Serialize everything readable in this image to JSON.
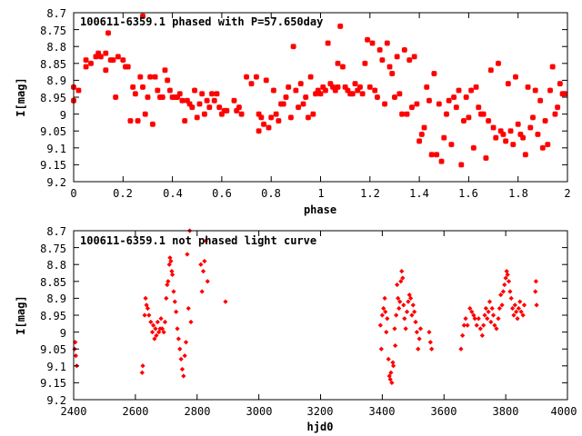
{
  "figure": {
    "background": "#ffffff",
    "marker_color": "#ff0000"
  },
  "chart_data": [
    {
      "type": "scatter",
      "title": "100611-6359.1 phased with P=57.650day",
      "xlabel": "phase",
      "ylabel": "I[mag]",
      "xlim": [
        0,
        2
      ],
      "ylim": [
        9.2,
        8.7
      ],
      "y_inverted": true,
      "grid": false,
      "legend": "none",
      "marker": "bold-cross",
      "color": "#ff0000",
      "x_ticks": [
        "0",
        "0.2",
        "0.4",
        "0.6",
        "0.8",
        "1",
        "1.2",
        "1.4",
        "1.6",
        "1.8",
        "2"
      ],
      "y_ticks": [
        "8.7",
        "8.75",
        "8.8",
        "8.85",
        "8.9",
        "8.95",
        "9",
        "9.05",
        "9.1",
        "9.15",
        "9.2"
      ],
      "points": [
        [
          0.0,
          8.92
        ],
        [
          0.0,
          8.96
        ],
        [
          0.02,
          8.93
        ],
        [
          0.05,
          8.86
        ],
        [
          0.05,
          8.84
        ],
        [
          0.07,
          8.85
        ],
        [
          0.09,
          8.83
        ],
        [
          0.1,
          8.82
        ],
        [
          0.11,
          8.83
        ],
        [
          0.13,
          8.82
        ],
        [
          0.13,
          8.87
        ],
        [
          0.14,
          8.76
        ],
        [
          0.15,
          8.84
        ],
        [
          0.16,
          8.84
        ],
        [
          0.17,
          8.95
        ],
        [
          0.18,
          8.83
        ],
        [
          0.2,
          8.84
        ],
        [
          0.21,
          8.86
        ],
        [
          0.22,
          8.86
        ],
        [
          0.23,
          9.02
        ],
        [
          0.24,
          8.92
        ],
        [
          0.25,
          8.94
        ],
        [
          0.26,
          9.02
        ],
        [
          0.27,
          8.89
        ],
        [
          0.28,
          8.92
        ],
        [
          0.28,
          8.71
        ],
        [
          0.29,
          9.0
        ],
        [
          0.3,
          8.95
        ],
        [
          0.31,
          8.89
        ],
        [
          0.32,
          9.03
        ],
        [
          0.33,
          8.89
        ],
        [
          0.34,
          8.93
        ],
        [
          0.35,
          8.95
        ],
        [
          0.36,
          8.95
        ],
        [
          0.37,
          8.87
        ],
        [
          0.38,
          8.9
        ],
        [
          0.39,
          8.93
        ],
        [
          0.4,
          8.95
        ],
        [
          0.41,
          8.95
        ],
        [
          0.42,
          8.95
        ],
        [
          0.43,
          8.94
        ],
        [
          0.44,
          8.96
        ],
        [
          0.45,
          9.02
        ],
        [
          0.46,
          8.96
        ],
        [
          0.47,
          8.97
        ],
        [
          0.48,
          8.98
        ],
        [
          0.49,
          8.93
        ],
        [
          0.5,
          9.01
        ],
        [
          0.51,
          8.97
        ],
        [
          0.52,
          8.94
        ],
        [
          0.53,
          9.0
        ],
        [
          0.54,
          8.96
        ],
        [
          0.55,
          8.98
        ],
        [
          0.56,
          8.94
        ],
        [
          0.57,
          8.96
        ],
        [
          0.58,
          8.94
        ],
        [
          0.59,
          8.98
        ],
        [
          0.6,
          9.0
        ],
        [
          0.61,
          8.99
        ],
        [
          0.62,
          8.99
        ],
        [
          0.65,
          8.96
        ],
        [
          0.66,
          8.99
        ],
        [
          0.67,
          8.98
        ],
        [
          0.68,
          9.0
        ],
        [
          0.7,
          8.89
        ],
        [
          0.72,
          8.91
        ],
        [
          0.74,
          8.89
        ],
        [
          0.75,
          9.0
        ],
        [
          0.75,
          9.05
        ],
        [
          0.76,
          9.01
        ],
        [
          0.77,
          9.03
        ],
        [
          0.78,
          8.9
        ],
        [
          0.79,
          9.04
        ],
        [
          0.8,
          9.01
        ],
        [
          0.81,
          8.93
        ],
        [
          0.82,
          9.0
        ],
        [
          0.83,
          9.02
        ],
        [
          0.84,
          8.97
        ],
        [
          0.85,
          8.97
        ],
        [
          0.86,
          8.95
        ],
        [
          0.87,
          8.92
        ],
        [
          0.88,
          9.01
        ],
        [
          0.89,
          8.8
        ],
        [
          0.9,
          8.93
        ],
        [
          0.91,
          8.98
        ],
        [
          0.92,
          8.91
        ],
        [
          0.93,
          8.97
        ],
        [
          0.94,
          8.95
        ],
        [
          0.95,
          9.01
        ],
        [
          0.96,
          8.89
        ],
        [
          0.97,
          9.0
        ],
        [
          0.98,
          8.94
        ],
        [
          0.99,
          8.93
        ],
        [
          1.0,
          8.94
        ],
        [
          1.01,
          8.92
        ],
        [
          1.02,
          8.93
        ],
        [
          1.03,
          8.79
        ],
        [
          1.04,
          8.91
        ],
        [
          1.05,
          8.92
        ],
        [
          1.06,
          8.93
        ],
        [
          1.07,
          8.92
        ],
        [
          1.07,
          8.85
        ],
        [
          1.08,
          8.74
        ],
        [
          1.09,
          8.86
        ],
        [
          1.1,
          8.92
        ],
        [
          1.11,
          8.93
        ],
        [
          1.12,
          8.94
        ],
        [
          1.13,
          8.94
        ],
        [
          1.14,
          8.91
        ],
        [
          1.15,
          8.93
        ],
        [
          1.16,
          8.92
        ],
        [
          1.17,
          8.94
        ],
        [
          1.18,
          8.85
        ],
        [
          1.19,
          8.78
        ],
        [
          1.2,
          8.92
        ],
        [
          1.21,
          8.79
        ],
        [
          1.22,
          8.93
        ],
        [
          1.23,
          8.95
        ],
        [
          1.24,
          8.81
        ],
        [
          1.25,
          8.84
        ],
        [
          1.26,
          8.97
        ],
        [
          1.27,
          8.79
        ],
        [
          1.28,
          8.86
        ],
        [
          1.29,
          8.88
        ],
        [
          1.3,
          8.95
        ],
        [
          1.31,
          8.83
        ],
        [
          1.32,
          8.94
        ],
        [
          1.33,
          9.0
        ],
        [
          1.34,
          8.81
        ],
        [
          1.35,
          9.0
        ],
        [
          1.36,
          8.84
        ],
        [
          1.37,
          8.98
        ],
        [
          1.38,
          8.83
        ],
        [
          1.39,
          8.97
        ],
        [
          1.4,
          9.08
        ],
        [
          1.41,
          9.06
        ],
        [
          1.42,
          9.04
        ],
        [
          1.43,
          8.92
        ],
        [
          1.44,
          8.96
        ],
        [
          1.45,
          9.12
        ],
        [
          1.46,
          8.88
        ],
        [
          1.47,
          9.12
        ],
        [
          1.48,
          8.97
        ],
        [
          1.49,
          9.14
        ],
        [
          1.5,
          9.07
        ],
        [
          1.51,
          9.0
        ],
        [
          1.52,
          8.96
        ],
        [
          1.53,
          9.09
        ],
        [
          1.54,
          8.95
        ],
        [
          1.55,
          8.98
        ],
        [
          1.56,
          8.93
        ],
        [
          1.57,
          9.15
        ],
        [
          1.58,
          9.02
        ],
        [
          1.59,
          8.95
        ],
        [
          1.6,
          9.01
        ],
        [
          1.61,
          8.93
        ],
        [
          1.62,
          9.1
        ],
        [
          1.63,
          8.92
        ],
        [
          1.64,
          8.98
        ],
        [
          1.65,
          9.0
        ],
        [
          1.66,
          9.0
        ],
        [
          1.67,
          9.13
        ],
        [
          1.68,
          9.02
        ],
        [
          1.69,
          8.87
        ],
        [
          1.7,
          9.04
        ],
        [
          1.71,
          9.07
        ],
        [
          1.72,
          8.85
        ],
        [
          1.73,
          9.05
        ],
        [
          1.74,
          9.06
        ],
        [
          1.75,
          9.08
        ],
        [
          1.76,
          8.91
        ],
        [
          1.77,
          9.05
        ],
        [
          1.78,
          9.09
        ],
        [
          1.79,
          8.89
        ],
        [
          1.8,
          9.03
        ],
        [
          1.81,
          9.06
        ],
        [
          1.82,
          9.07
        ],
        [
          1.83,
          9.12
        ],
        [
          1.84,
          8.92
        ],
        [
          1.85,
          9.04
        ],
        [
          1.86,
          9.01
        ],
        [
          1.87,
          8.93
        ],
        [
          1.88,
          9.06
        ],
        [
          1.89,
          8.96
        ],
        [
          1.9,
          9.1
        ],
        [
          1.91,
          9.02
        ],
        [
          1.92,
          9.09
        ],
        [
          1.93,
          8.93
        ],
        [
          1.94,
          8.86
        ],
        [
          1.95,
          9.0
        ],
        [
          1.96,
          8.98
        ],
        [
          1.97,
          8.91
        ],
        [
          1.98,
          8.94
        ],
        [
          1.99,
          8.94
        ]
      ]
    },
    {
      "type": "scatter",
      "title": "100611-6359.1 not phased light curve",
      "xlabel": "hjd0",
      "ylabel": "I[mag]",
      "xlim": [
        2400,
        4000
      ],
      "ylim": [
        9.2,
        8.7
      ],
      "y_inverted": true,
      "grid": false,
      "legend": "none",
      "marker": "diamond",
      "color": "#ff0000",
      "x_ticks": [
        "2400",
        "2600",
        "2800",
        "3000",
        "3200",
        "3400",
        "3600",
        "3800",
        "4000"
      ],
      "y_ticks": [
        "8.7",
        "8.75",
        "8.8",
        "8.85",
        "8.9",
        "8.95",
        "9",
        "9.05",
        "9.1",
        "9.15",
        "9.2"
      ],
      "points": [
        [
          2403,
          9.05
        ],
        [
          2405,
          9.03
        ],
        [
          2407,
          9.07
        ],
        [
          2410,
          9.1
        ],
        [
          2622,
          9.12
        ],
        [
          2624,
          9.1
        ],
        [
          2630,
          8.95
        ],
        [
          2633,
          8.9
        ],
        [
          2636,
          8.92
        ],
        [
          2640,
          8.93
        ],
        [
          2644,
          8.95
        ],
        [
          2650,
          8.97
        ],
        [
          2655,
          9.0
        ],
        [
          2658,
          8.98
        ],
        [
          2662,
          9.02
        ],
        [
          2665,
          8.99
        ],
        [
          2668,
          9.01
        ],
        [
          2672,
          8.97
        ],
        [
          2676,
          9.0
        ],
        [
          2680,
          8.99
        ],
        [
          2683,
          8.96
        ],
        [
          2687,
          8.99
        ],
        [
          2692,
          9.0
        ],
        [
          2696,
          8.97
        ],
        [
          2700,
          8.9
        ],
        [
          2703,
          8.86
        ],
        [
          2706,
          8.85
        ],
        [
          2710,
          8.8
        ],
        [
          2712,
          8.78
        ],
        [
          2715,
          8.79
        ],
        [
          2718,
          8.82
        ],
        [
          2720,
          8.83
        ],
        [
          2724,
          8.88
        ],
        [
          2728,
          8.91
        ],
        [
          2732,
          8.94
        ],
        [
          2736,
          8.99
        ],
        [
          2740,
          9.02
        ],
        [
          2744,
          9.05
        ],
        [
          2748,
          9.08
        ],
        [
          2752,
          9.11
        ],
        [
          2756,
          9.13
        ],
        [
          2760,
          9.07
        ],
        [
          2764,
          9.03
        ],
        [
          2768,
          8.77
        ],
        [
          2772,
          8.93
        ],
        [
          2776,
          8.7
        ],
        [
          2780,
          8.97
        ],
        [
          2812,
          8.8
        ],
        [
          2816,
          8.88
        ],
        [
          2820,
          8.82
        ],
        [
          2824,
          8.79
        ],
        [
          2828,
          8.73
        ],
        [
          2834,
          8.85
        ],
        [
          2892,
          8.91
        ],
        [
          3394,
          8.98
        ],
        [
          3397,
          9.05
        ],
        [
          3400,
          8.95
        ],
        [
          3404,
          8.93
        ],
        [
          3408,
          8.9
        ],
        [
          3410,
          8.94
        ],
        [
          3413,
          9.0
        ],
        [
          3416,
          8.96
        ],
        [
          3420,
          9.08
        ],
        [
          3423,
          9.13
        ],
        [
          3426,
          9.14
        ],
        [
          3428,
          9.12
        ],
        [
          3431,
          9.15
        ],
        [
          3434,
          9.09
        ],
        [
          3436,
          9.1
        ],
        [
          3440,
          8.99
        ],
        [
          3442,
          9.04
        ],
        [
          3445,
          8.95
        ],
        [
          3448,
          8.86
        ],
        [
          3451,
          8.9
        ],
        [
          3454,
          8.93
        ],
        [
          3457,
          8.91
        ],
        [
          3460,
          8.85
        ],
        [
          3463,
          8.82
        ],
        [
          3466,
          8.84
        ],
        [
          3469,
          8.92
        ],
        [
          3472,
          8.96
        ],
        [
          3476,
          8.99
        ],
        [
          3480,
          8.94
        ],
        [
          3484,
          8.91
        ],
        [
          3488,
          8.89
        ],
        [
          3492,
          8.9
        ],
        [
          3496,
          8.95
        ],
        [
          3500,
          8.92
        ],
        [
          3504,
          8.94
        ],
        [
          3508,
          8.97
        ],
        [
          3512,
          9.0
        ],
        [
          3516,
          9.05
        ],
        [
          3520,
          9.02
        ],
        [
          3524,
          8.99
        ],
        [
          3552,
          9.0
        ],
        [
          3556,
          9.03
        ],
        [
          3560,
          9.05
        ],
        [
          3655,
          9.05
        ],
        [
          3660,
          9.01
        ],
        [
          3665,
          8.98
        ],
        [
          3670,
          8.96
        ],
        [
          3676,
          8.98
        ],
        [
          3684,
          8.93
        ],
        [
          3690,
          8.94
        ],
        [
          3696,
          8.95
        ],
        [
          3700,
          8.96
        ],
        [
          3706,
          8.98
        ],
        [
          3712,
          8.96
        ],
        [
          3718,
          8.99
        ],
        [
          3724,
          9.01
        ],
        [
          3728,
          8.98
        ],
        [
          3732,
          8.95
        ],
        [
          3736,
          8.93
        ],
        [
          3740,
          8.96
        ],
        [
          3744,
          8.94
        ],
        [
          3748,
          8.91
        ],
        [
          3752,
          8.97
        ],
        [
          3756,
          8.93
        ],
        [
          3760,
          8.95
        ],
        [
          3764,
          8.98
        ],
        [
          3770,
          8.99
        ],
        [
          3776,
          8.96
        ],
        [
          3780,
          8.93
        ],
        [
          3784,
          8.89
        ],
        [
          3788,
          8.92
        ],
        [
          3792,
          8.88
        ],
        [
          3796,
          8.86
        ],
        [
          3800,
          8.84
        ],
        [
          3803,
          8.82
        ],
        [
          3806,
          8.83
        ],
        [
          3810,
          8.85
        ],
        [
          3814,
          8.88
        ],
        [
          3818,
          8.9
        ],
        [
          3822,
          8.93
        ],
        [
          3826,
          8.95
        ],
        [
          3830,
          8.92
        ],
        [
          3834,
          8.94
        ],
        [
          3838,
          8.96
        ],
        [
          3842,
          8.93
        ],
        [
          3846,
          8.91
        ],
        [
          3850,
          8.94
        ],
        [
          3856,
          8.95
        ],
        [
          3860,
          8.92
        ],
        [
          3896,
          8.88
        ],
        [
          3898,
          8.85
        ],
        [
          3900,
          8.92
        ]
      ]
    }
  ]
}
